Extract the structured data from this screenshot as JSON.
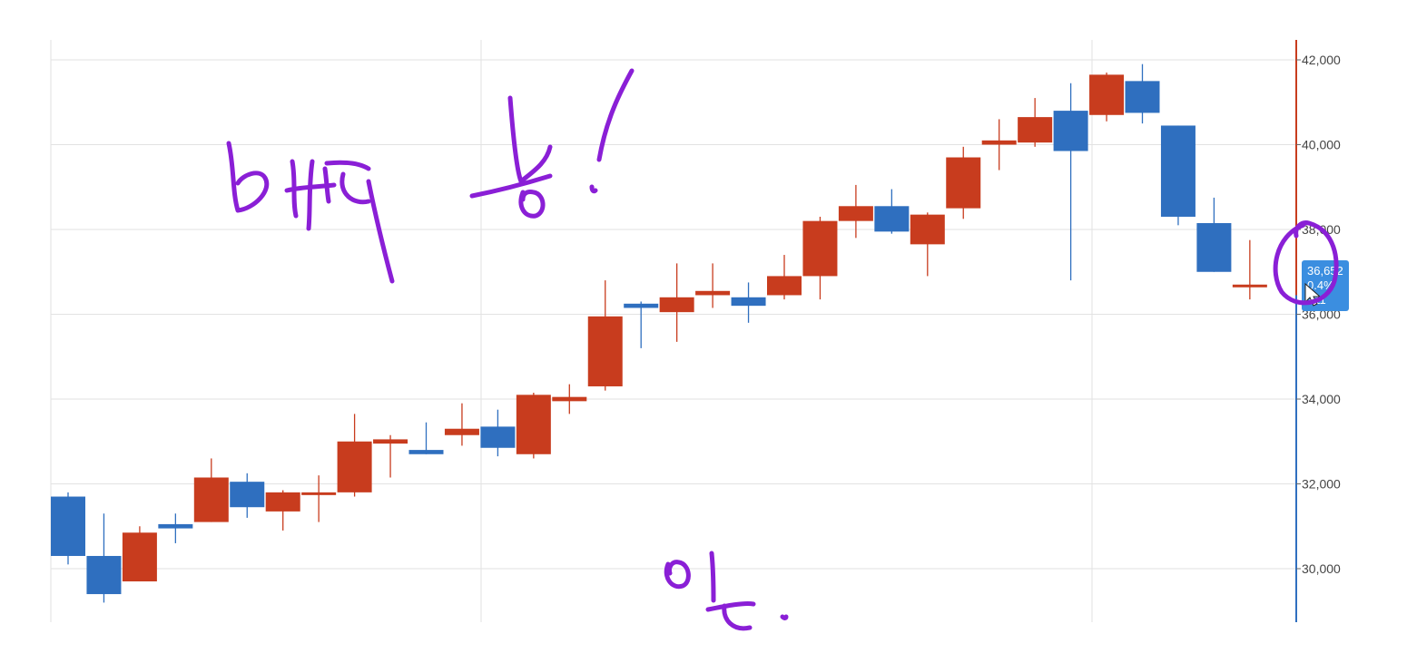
{
  "chart_data": {
    "type": "candlestick",
    "y_axis": {
      "side": "right",
      "range": [
        28800,
        42500
      ],
      "ticks": [
        30000,
        32000,
        34000,
        36000,
        38000,
        40000,
        42000
      ],
      "tick_labels": [
        "30,000",
        "32,000",
        "34,000",
        "36,000",
        "38,000",
        "40,000",
        "42,000"
      ]
    },
    "grid": true,
    "colors": {
      "up": "#c83c1e",
      "down": "#2f6fbf",
      "grid": "#e2e2e2",
      "ink": "#8a1fd6"
    },
    "candles": [
      {
        "o": 31700,
        "h": 31800,
        "l": 30100,
        "c": 30300
      },
      {
        "o": 30300,
        "h": 31300,
        "l": 29200,
        "c": 29400
      },
      {
        "o": 29700,
        "h": 31000,
        "l": 29700,
        "c": 30850
      },
      {
        "o": 31050,
        "h": 31300,
        "l": 30600,
        "c": 30950
      },
      {
        "o": 31100,
        "h": 32600,
        "l": 31100,
        "c": 32150
      },
      {
        "o": 32050,
        "h": 32250,
        "l": 31200,
        "c": 31450
      },
      {
        "o": 31350,
        "h": 31850,
        "l": 30900,
        "c": 31800
      },
      {
        "o": 31750,
        "h": 32200,
        "l": 31100,
        "c": 31800
      },
      {
        "o": 31800,
        "h": 33650,
        "l": 31700,
        "c": 33000
      },
      {
        "o": 32950,
        "h": 33150,
        "l": 32150,
        "c": 33050
      },
      {
        "o": 32800,
        "h": 33450,
        "l": 32700,
        "c": 32700
      },
      {
        "o": 33150,
        "h": 33900,
        "l": 32900,
        "c": 33300
      },
      {
        "o": 33350,
        "h": 33750,
        "l": 32650,
        "c": 32850
      },
      {
        "o": 32700,
        "h": 34150,
        "l": 32600,
        "c": 34100
      },
      {
        "o": 33950,
        "h": 34350,
        "l": 33650,
        "c": 34050
      },
      {
        "o": 34300,
        "h": 36800,
        "l": 34200,
        "c": 35950
      },
      {
        "o": 36250,
        "h": 36300,
        "l": 35200,
        "c": 36150
      },
      {
        "o": 36050,
        "h": 37200,
        "l": 35350,
        "c": 36400
      },
      {
        "o": 36450,
        "h": 37200,
        "l": 36150,
        "c": 36550
      },
      {
        "o": 36400,
        "h": 36750,
        "l": 35800,
        "c": 36200
      },
      {
        "o": 36450,
        "h": 37400,
        "l": 36350,
        "c": 36900
      },
      {
        "o": 36900,
        "h": 38300,
        "l": 36350,
        "c": 38200
      },
      {
        "o": 38200,
        "h": 39050,
        "l": 37800,
        "c": 38550
      },
      {
        "o": 38550,
        "h": 38950,
        "l": 37900,
        "c": 37950
      },
      {
        "o": 37650,
        "h": 38400,
        "l": 36900,
        "c": 38350
      },
      {
        "o": 38500,
        "h": 39950,
        "l": 38250,
        "c": 39700
      },
      {
        "o": 40000,
        "h": 40600,
        "l": 39400,
        "c": 40100
      },
      {
        "o": 40050,
        "h": 41100,
        "l": 39950,
        "c": 40650
      },
      {
        "o": 40800,
        "h": 41450,
        "l": 36800,
        "c": 39850
      },
      {
        "o": 40700,
        "h": 41700,
        "l": 40550,
        "c": 41650
      },
      {
        "o": 41500,
        "h": 41900,
        "l": 40500,
        "c": 40750
      },
      {
        "o": 40450,
        "h": 40450,
        "l": 38100,
        "c": 38300
      },
      {
        "o": 38150,
        "h": 38750,
        "l": 37000,
        "c": 37000
      },
      {
        "o": 36700,
        "h": 37750,
        "l": 36350,
        "c": 36700
      }
    ],
    "price_tag": {
      "lines": [
        "36,652",
        "0.4%",
        "311"
      ],
      "color": "#3b8ee0"
    }
  }
}
